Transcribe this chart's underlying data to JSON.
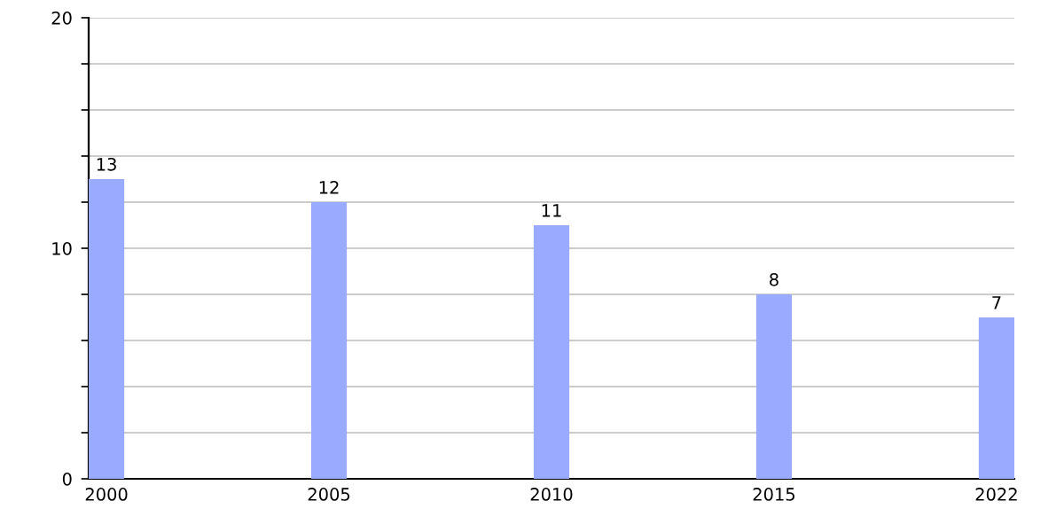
{
  "chart_data": {
    "type": "bar",
    "categories": [
      "2000",
      "2005",
      "2010",
      "2015",
      "2022"
    ],
    "values": [
      13,
      12,
      11,
      8,
      7
    ],
    "color": "#99aaff",
    "ylim": [
      0,
      20
    ],
    "yticks": [
      0,
      {
        "value": 2,
        "label": null
      },
      {
        "value": 4,
        "label": null
      },
      {
        "value": 6,
        "label": null
      },
      {
        "value": 8,
        "label": null
      },
      10,
      {
        "value": 12,
        "label": null
      },
      {
        "value": 14,
        "label": null
      },
      {
        "value": 16,
        "label": null
      },
      {
        "value": 18,
        "label": null
      },
      20
    ],
    "grid": "y",
    "data_labels": true
  }
}
